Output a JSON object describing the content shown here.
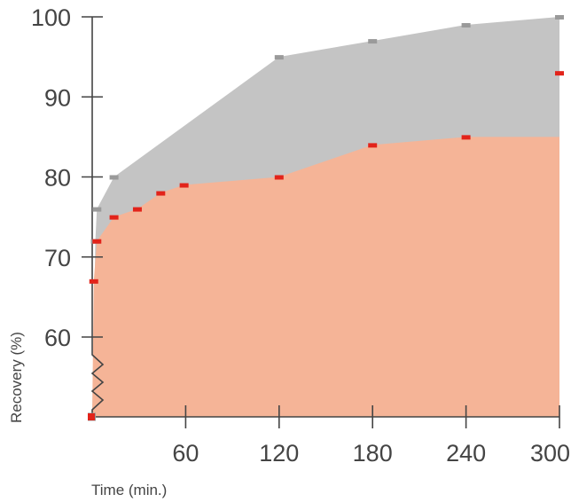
{
  "chart_data": {
    "type": "area",
    "title": "",
    "xlabel": "Time (min.)",
    "ylabel": "Recovery (%)",
    "xlim": [
      0,
      300
    ],
    "ylim": [
      50,
      100
    ],
    "axis_break": "y",
    "x_ticks": [
      60,
      120,
      180,
      240,
      300
    ],
    "x_tick_labels": [
      "60",
      "120",
      "180",
      "240",
      "300"
    ],
    "y_ticks": [
      60,
      70,
      80,
      90,
      100
    ],
    "y_tick_labels": [
      "60",
      "70",
      "80",
      "90",
      "100"
    ],
    "grid": false,
    "legend": "none",
    "series": [
      {
        "color": "#c4c4c4",
        "marker_color": "#9a9a9a",
        "x": [
          0,
          2,
          3,
          14,
          120,
          180,
          240,
          300
        ],
        "y": [
          50,
          72,
          76,
          80,
          95,
          97,
          99,
          100
        ]
      },
      {
        "color": "#f5b497",
        "marker_color": "#e2231a",
        "x": [
          0,
          1,
          3,
          14,
          29,
          44,
          59,
          120,
          180,
          240,
          300
        ],
        "y": [
          50,
          67,
          72,
          75,
          76,
          78,
          79,
          80,
          84,
          85,
          93
        ],
        "fill_y": [
          50,
          67,
          72,
          75,
          76,
          78,
          79,
          80,
          84,
          85,
          85
        ]
      }
    ]
  }
}
